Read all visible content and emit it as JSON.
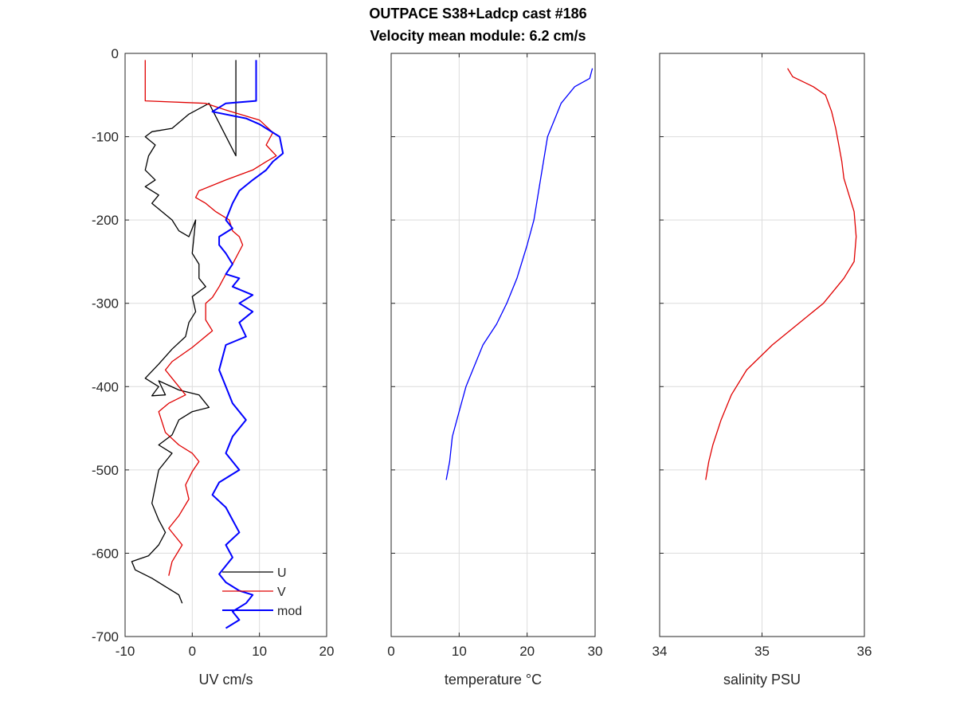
{
  "figure": {
    "title_line1": "OUTPACE S38+Ladcp cast #186",
    "title_line2": "Velocity mean module:  6.2 cm/s"
  },
  "colors": {
    "axis": "#262626",
    "grid": "#dcdcdc",
    "U": "#000000",
    "V": "#e00000",
    "mod": "#0000ff",
    "temperature": "#0000ff",
    "salinity": "#e00000"
  },
  "chart_data": [
    {
      "type": "line",
      "xlabel": "UV cm/s",
      "ylabel": "",
      "xlim": [
        -10,
        20
      ],
      "ylim": [
        -700,
        0
      ],
      "xticks": [
        -10,
        0,
        10,
        20
      ],
      "yticks": [
        0,
        -100,
        -200,
        -300,
        -400,
        -500,
        -600,
        -700
      ],
      "grid": true,
      "legend": "bottom-right",
      "series": [
        {
          "name": "U",
          "color": "#000000",
          "x": [
            6.5,
            6.5,
            6.5,
            2.5,
            -0.5,
            -3,
            -6,
            -7,
            -5.5,
            -6.5,
            -7,
            -5.5,
            -7,
            -5,
            -6,
            -3,
            -2,
            -0.5,
            0.5,
            0,
            1,
            1,
            2,
            0,
            0.5,
            -0.5,
            -1,
            -3,
            -5,
            -7,
            -5,
            -6,
            -4,
            -5,
            -2,
            1,
            2.5,
            0,
            -2,
            -3,
            -5,
            -3,
            -5,
            -5.5,
            -6,
            -5,
            -4,
            -5,
            -6.5,
            -9,
            -8.5,
            -6,
            -4,
            -2,
            -1.5
          ],
          "y": [
            -8,
            -60,
            -123,
            -60,
            -73,
            -90,
            -94,
            -100,
            -110,
            -123,
            -140,
            -152,
            -160,
            -170,
            -180,
            -200,
            -213,
            -220,
            -200,
            -240,
            -253,
            -270,
            -280,
            -292,
            -310,
            -323,
            -340,
            -355,
            -373,
            -390,
            -400,
            -411,
            -410,
            -393,
            -404,
            -410,
            -425,
            -430,
            -440,
            -458,
            -470,
            -480,
            -500,
            -520,
            -540,
            -560,
            -575,
            -590,
            -603,
            -610,
            -620,
            -630,
            -640,
            -650,
            -660
          ]
        },
        {
          "name": "V",
          "color": "#e00000",
          "x": [
            -7,
            -7,
            -7,
            2,
            5,
            10,
            12,
            11,
            12.5,
            11,
            9,
            5,
            1,
            0.5,
            2,
            3.5,
            5.5,
            6,
            7,
            7.5,
            6,
            5,
            4,
            3,
            2,
            2,
            3,
            0,
            -3,
            -4,
            -3,
            -1,
            -3.5,
            -5,
            -4,
            -2,
            0,
            1,
            0,
            -1,
            -0.5,
            -2,
            -3.5,
            -1.5,
            -3,
            -3.5
          ],
          "y": [
            -8,
            -30,
            -57,
            -60,
            -68,
            -80,
            -95,
            -110,
            -123,
            -130,
            -140,
            -152,
            -165,
            -173,
            -180,
            -190,
            -200,
            -213,
            -220,
            -230,
            -253,
            -265,
            -280,
            -293,
            -300,
            -320,
            -333,
            -353,
            -370,
            -380,
            -390,
            -410,
            -420,
            -430,
            -455,
            -470,
            -480,
            -490,
            -502,
            -518,
            -535,
            -555,
            -570,
            -590,
            -610,
            -627
          ]
        },
        {
          "name": "mod",
          "color": "#0000ff",
          "x": [
            9.5,
            9.5,
            9.5,
            5,
            3,
            8,
            10,
            11,
            13,
            13.5,
            12,
            11,
            9,
            7,
            6,
            5,
            6,
            4,
            4,
            5,
            6,
            5,
            7,
            6,
            9,
            7,
            9,
            7,
            8,
            5,
            4,
            5,
            6,
            8,
            6,
            5,
            7,
            4,
            3,
            5,
            6,
            7,
            5,
            6,
            5,
            4,
            5,
            7,
            9,
            8,
            6,
            7,
            5
          ],
          "y": [
            -8,
            -30,
            -57,
            -60,
            -70,
            -78,
            -85,
            -90,
            -100,
            -120,
            -130,
            -140,
            -152,
            -165,
            -180,
            -200,
            -210,
            -220,
            -230,
            -240,
            -253,
            -265,
            -270,
            -280,
            -290,
            -300,
            -310,
            -323,
            -340,
            -350,
            -380,
            -400,
            -420,
            -440,
            -460,
            -480,
            -500,
            -515,
            -530,
            -545,
            -560,
            -575,
            -590,
            -605,
            -615,
            -625,
            -635,
            -645,
            -650,
            -660,
            -670,
            -680,
            -690
          ]
        }
      ]
    },
    {
      "type": "line",
      "xlabel": "temperature °C",
      "xlim": [
        0,
        30
      ],
      "ylim": [
        -700,
        0
      ],
      "xticks": [
        0,
        10,
        20,
        30
      ],
      "yticks": [
        0,
        -100,
        -200,
        -300,
        -400,
        -500,
        -600,
        -700
      ],
      "grid": true,
      "series": [
        {
          "color": "#0000ff",
          "x": [
            29.6,
            29.2,
            27,
            25,
            24,
            23,
            22,
            21,
            20,
            18.5,
            17,
            15.5,
            13.5,
            12,
            11,
            10,
            9,
            8.6,
            8.1
          ],
          "y": [
            -18,
            -30,
            -40,
            -60,
            -80,
            -100,
            -150,
            -200,
            -230,
            -270,
            -300,
            -325,
            -350,
            -380,
            -400,
            -430,
            -460,
            -490,
            -512
          ]
        }
      ]
    },
    {
      "type": "line",
      "xlabel": "salinity PSU",
      "xlim": [
        34,
        36
      ],
      "ylim": [
        -700,
        0
      ],
      "xticks": [
        34,
        35,
        36
      ],
      "yticks": [
        0,
        -100,
        -200,
        -300,
        -400,
        -500,
        -600,
        -700
      ],
      "grid": true,
      "series": [
        {
          "color": "#e00000",
          "x": [
            35.25,
            35.3,
            35.5,
            35.62,
            35.68,
            35.72,
            35.75,
            35.78,
            35.8,
            35.85,
            35.9,
            35.92,
            35.9,
            35.8,
            35.6,
            35.4,
            35.1,
            34.85,
            34.7,
            34.6,
            34.52,
            34.48,
            34.45
          ],
          "y": [
            -18,
            -28,
            -40,
            -50,
            -70,
            -90,
            -110,
            -130,
            -150,
            -170,
            -190,
            -220,
            -250,
            -270,
            -300,
            -320,
            -350,
            -380,
            -410,
            -440,
            -470,
            -490,
            -512
          ]
        }
      ]
    }
  ]
}
